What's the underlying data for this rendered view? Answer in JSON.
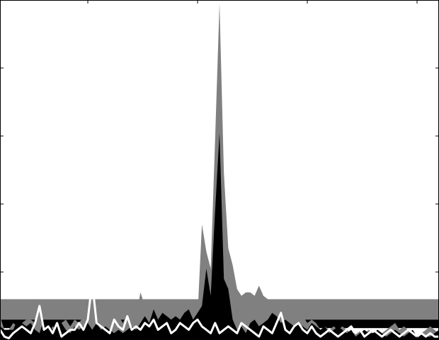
{
  "chart_data": {
    "type": "area",
    "title": "",
    "xlabel": "",
    "ylabel": "",
    "xlim": [
      0,
      100
    ],
    "ylim": [
      0,
      10
    ],
    "grid": false,
    "legend": "none",
    "x": [
      0,
      1,
      2,
      3,
      4,
      5,
      6,
      7,
      8,
      9,
      10,
      11,
      12,
      13,
      14,
      15,
      16,
      17,
      18,
      19,
      20,
      21,
      22,
      23,
      24,
      25,
      26,
      27,
      28,
      29,
      30,
      31,
      32,
      33,
      34,
      35,
      36,
      37,
      38,
      39,
      40,
      41,
      42,
      43,
      44,
      45,
      46,
      47,
      48,
      49,
      50,
      51,
      52,
      53,
      54,
      55,
      56,
      57,
      58,
      59,
      60,
      61,
      62,
      63,
      64,
      65,
      66,
      67,
      68,
      69,
      70,
      71,
      72,
      73,
      74,
      75,
      76,
      77,
      78,
      79,
      80,
      81,
      82,
      83,
      84,
      85,
      86,
      87,
      88,
      89,
      90,
      91,
      92,
      93,
      94,
      95,
      96,
      97,
      98,
      99,
      100
    ],
    "bands": [
      {
        "name": "",
        "color": "#808080",
        "lower": 0.6,
        "upper": 1.2
      },
      {
        "name": "",
        "color": "#000000",
        "lower": 0.35,
        "upper": 0.6
      }
    ],
    "series": [
      {
        "name": "",
        "color": "#808080",
        "values": [
          0.7,
          0.3,
          0.3,
          0.5,
          0.4,
          0.5,
          0.6,
          0.6,
          0.5,
          0.7,
          0.3,
          0.2,
          0.4,
          0.3,
          0.5,
          0.6,
          0.4,
          0.6,
          0.5,
          0.7,
          0.8,
          0.6,
          0.7,
          0.9,
          0.7,
          0.6,
          0.8,
          0.7,
          0.5,
          0.8,
          0.6,
          0.7,
          1.4,
          1.0,
          0.8,
          0.9,
          1.1,
          1.1,
          0.9,
          1.0,
          0.9,
          0.8,
          0.9,
          0.8,
          0.9,
          0.7,
          3.4,
          2.6,
          2.1,
          5.9,
          9.9,
          4.9,
          2.7,
          2.2,
          1.5,
          1.3,
          1.4,
          1.4,
          1.3,
          1.6,
          1.3,
          1.2,
          1.1,
          1.1,
          1.1,
          1.2,
          1.0,
          0.9,
          0.8,
          0.7,
          0.5,
          0.6,
          0.5,
          0.3,
          0.4,
          0.3,
          0.4,
          0.3,
          0.4,
          0.3,
          0.2,
          0.2,
          0.3,
          0.2,
          0.3,
          0.2,
          0.3,
          0.2,
          0.3,
          0.4,
          0.5,
          0.3,
          0.4,
          0.3,
          0.2,
          0.1,
          0.2,
          0.3,
          0.4,
          0.3,
          0.2
        ]
      },
      {
        "name": "",
        "color": "#000000",
        "values": [
          0.4,
          0.3,
          0.3,
          0.3,
          0.6,
          0.5,
          0.4,
          0.5,
          0.3,
          0.2,
          0.6,
          0.5,
          0.3,
          0.4,
          0.5,
          0.3,
          0.2,
          0.4,
          0.3,
          0.4,
          0.5,
          0.3,
          0.5,
          0.3,
          0.4,
          0.3,
          0.2,
          0.3,
          0.2,
          0.3,
          0.4,
          0.3,
          0.5,
          0.7,
          0.5,
          0.9,
          0.6,
          0.8,
          0.7,
          0.6,
          0.7,
          0.6,
          0.8,
          0.9,
          0.6,
          0.8,
          1.0,
          2.1,
          1.3,
          3.8,
          6.1,
          1.8,
          1.5,
          0.6,
          0.3,
          0.4,
          0.2,
          0.5,
          0.6,
          0.4,
          0.5,
          0.6,
          0.8,
          0.7,
          0.5,
          0.6,
          0.5,
          0.4,
          0.5,
          0.4,
          0.3,
          0.5,
          0.4,
          0.3,
          0.4,
          0.2,
          0.3,
          0.4,
          0.3,
          0.2,
          0.3,
          0.1,
          0.2,
          0.3,
          0.2,
          0.2,
          0.3,
          0.2,
          0.1,
          0.2,
          0.3,
          0.2,
          0.1,
          0.2,
          0.3,
          0.1,
          0.2,
          0.1,
          0.1,
          0.2,
          0.3
        ]
      }
    ],
    "white_line": {
      "name": "",
      "color": "#ffffff",
      "values": [
        0.3,
        0.1,
        0.05,
        0.2,
        0.3,
        0.4,
        0.3,
        0.2,
        0.5,
        1.0,
        0.3,
        0.4,
        0.2,
        0.5,
        0.1,
        0.2,
        0.3,
        0.3,
        0.5,
        0.3,
        0.6,
        1.7,
        0.5,
        0.4,
        0.3,
        0.2,
        0.6,
        0.4,
        0.3,
        0.7,
        0.3,
        0.4,
        0.3,
        0.5,
        0.4,
        0.6,
        0.3,
        0.4,
        0.5,
        0.2,
        0.3,
        0.5,
        0.4,
        0.3,
        0.5,
        0.6,
        0.4,
        0.3,
        0.2,
        0.5,
        0.2,
        0.3,
        0.4,
        0.3,
        0.2,
        0.5,
        0.4,
        0.3,
        0.2,
        0.1,
        0.4,
        0.3,
        0.2,
        0.5,
        0.8,
        0.3,
        0.2,
        0.4,
        0.5,
        0.3,
        0.2,
        0.4,
        0.2,
        0.1,
        0.2,
        0.3,
        0.2,
        0.1,
        0.2,
        0.3,
        0.4,
        0.2,
        0.3,
        0.1,
        0.2,
        0.3,
        0.2,
        0.1,
        0.2,
        0.3,
        0.2,
        0.1,
        0.2,
        0.3,
        0.2,
        0.1,
        0.2,
        0.1,
        0.2,
        0.1,
        0.1
      ]
    },
    "yticks": [
      0,
      2,
      4,
      6,
      8,
      10
    ],
    "xticks": [
      0,
      20,
      45,
      70,
      95
    ]
  }
}
